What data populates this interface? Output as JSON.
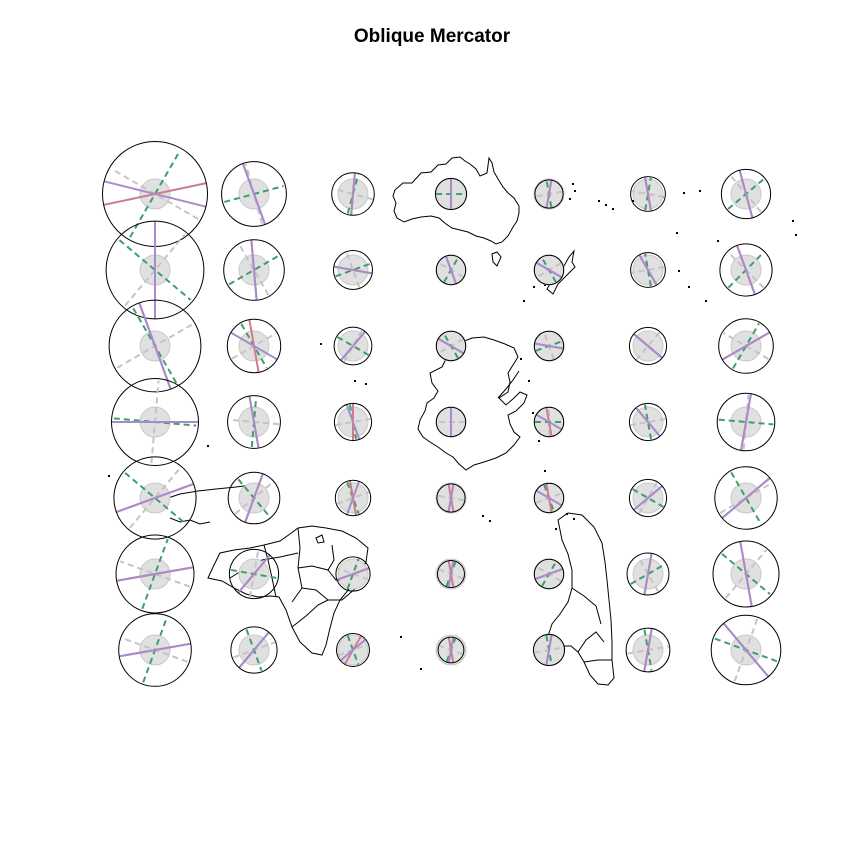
{
  "title": "Oblique Mercator",
  "colors": {
    "background": "#ffffff",
    "coastline": "#000000",
    "indicatrix_outline": "#000000",
    "reference_circle_fill": "#e0e0e0",
    "reference_circle_stroke": "#c8c8c8",
    "meridian": "#cc7f8a",
    "parallel": "#a98bcc",
    "max_distortion_axis": "#3f9d6e",
    "min_distortion_axis": "#c4c4c4"
  },
  "legend": null,
  "indicatrix_grid": {
    "columns": 7,
    "rows": 7,
    "ellipses": [
      [
        {
          "a": 1.75,
          "b": 1.75,
          "m": 102,
          "p": -14,
          "g": 60
        },
        {
          "a": 1.08,
          "b": 1.06,
          "m": 20,
          "p": -70,
          "g": 15
        },
        {
          "a": 0.71,
          "b": 0.71,
          "m": -5,
          "p": 85,
          "g": 75
        },
        {
          "a": 0.52,
          "b": 0.52,
          "m": 0,
          "p": 90,
          "g": 0
        },
        {
          "a": 0.47,
          "b": 0.47,
          "m": -10,
          "p": 80,
          "g": 100
        },
        {
          "a": 0.58,
          "b": 0.58,
          "m": 10,
          "p": -80,
          "g": 80
        },
        {
          "a": 0.82,
          "b": 0.82,
          "m": 15,
          "p": -75,
          "g": 40
        }
      ],
      [
        {
          "a": 1.63,
          "b": 1.63,
          "m": 0,
          "p": 90,
          "g": -40
        },
        {
          "a": 1.01,
          "b": 1.01,
          "m": 5,
          "p": -85,
          "g": 30
        },
        {
          "a": 0.65,
          "b": 0.65,
          "m": 80,
          "p": -10,
          "g": 20
        },
        {
          "a": 0.49,
          "b": 0.49,
          "m": 20,
          "p": -70,
          "g": 60
        },
        {
          "a": 0.49,
          "b": 0.49,
          "m": 60,
          "p": -30,
          "g": 120
        },
        {
          "a": 0.58,
          "b": 0.58,
          "m": 30,
          "p": -60,
          "g": 100
        },
        {
          "a": 0.87,
          "b": 0.87,
          "m": 20,
          "p": -70,
          "g": 45
        }
      ],
      [
        {
          "a": 1.53,
          "b": 1.53,
          "m": 20,
          "p": -70,
          "g": -60
        },
        {
          "a": 0.89,
          "b": 0.89,
          "m": 10,
          "p": -30,
          "g": -60
        },
        {
          "a": 0.63,
          "b": 0.63,
          "m": -40,
          "p": 50,
          "g": -30
        },
        {
          "a": 0.49,
          "b": 0.49,
          "m": 60,
          "p": -30,
          "g": 120
        },
        {
          "a": 0.49,
          "b": 0.49,
          "m": 80,
          "p": -10,
          "g": 20
        },
        {
          "a": 0.62,
          "b": 0.62,
          "m": 50,
          "p": -40,
          "g": 140
        },
        {
          "a": 0.91,
          "b": 0.91,
          "m": -60,
          "p": 30,
          "g": 60
        }
      ],
      [
        {
          "a": 1.45,
          "b": 1.45,
          "m": 90,
          "p": 0,
          "g": -5
        },
        {
          "a": 0.88,
          "b": 0.88,
          "m": 10,
          "p": -80,
          "g": 85
        },
        {
          "a": 0.62,
          "b": 0.62,
          "m": 0,
          "p": -70,
          "g": -80
        },
        {
          "a": 0.49,
          "b": 0.49,
          "m": 0,
          "p": 90,
          "g": 90
        },
        {
          "a": 0.49,
          "b": 0.49,
          "m": 10,
          "p": -30,
          "g": 0
        },
        {
          "a": 0.62,
          "b": 0.62,
          "m": 40,
          "p": -50,
          "g": 100
        },
        {
          "a": 0.96,
          "b": 0.96,
          "m": -10,
          "p": 80,
          "g": -5
        }
      ],
      [
        {
          "a": 1.37,
          "b": 1.37,
          "m": -70,
          "p": 20,
          "g": -40
        },
        {
          "a": 0.86,
          "b": 0.86,
          "m": -20,
          "p": 70,
          "g": -50
        },
        {
          "a": 0.59,
          "b": 0.59,
          "m": 10,
          "p": 70,
          "g": -70
        },
        {
          "a": 0.47,
          "b": 0.47,
          "m": 10,
          "p": 80,
          "g": 80
        },
        {
          "a": 0.49,
          "b": 0.49,
          "m": 10,
          "p": -30,
          "g": -70
        },
        {
          "a": 0.62,
          "b": 0.62,
          "m": -50,
          "p": 40,
          "g": -30
        },
        {
          "a": 1.04,
          "b": 1.04,
          "m": -50,
          "p": 40,
          "g": -60
        }
      ],
      [
        {
          "a": 1.3,
          "b": 1.3,
          "m": -80,
          "p": 10,
          "g": 70
        },
        {
          "a": 0.82,
          "b": 0.82,
          "m": -40,
          "p": 50,
          "g": -10
        },
        {
          "a": 0.57,
          "b": 0.57,
          "m": -70,
          "p": 20,
          "g": 70
        },
        {
          "a": 0.45,
          "b": 0.45,
          "m": 10,
          "p": 80,
          "g": 70
        },
        {
          "a": 0.49,
          "b": 0.49,
          "m": -70,
          "p": 20,
          "g": 60
        },
        {
          "a": 0.7,
          "b": 0.7,
          "m": -10,
          "p": 80,
          "g": 30
        },
        {
          "a": 1.1,
          "b": 1.1,
          "m": 10,
          "p": -80,
          "g": -40
        }
      ],
      [
        {
          "a": 1.21,
          "b": 1.21,
          "m": -80,
          "p": 10,
          "g": 70
        },
        {
          "a": 0.77,
          "b": 0.77,
          "m": -40,
          "p": 50,
          "g": -70
        },
        {
          "a": 0.55,
          "b": 0.55,
          "m": -30,
          "p": 40,
          "g": -70
        },
        {
          "a": 0.43,
          "b": 0.43,
          "m": 10,
          "p": 80,
          "g": 70
        },
        {
          "a": 0.52,
          "b": 0.52,
          "m": -10,
          "p": 80,
          "g": -80
        },
        {
          "a": 0.73,
          "b": 0.73,
          "m": -10,
          "p": 80,
          "g": -80
        },
        {
          "a": 1.16,
          "b": 1.16,
          "m": 40,
          "p": -50,
          "g": -20
        }
      ]
    ]
  }
}
